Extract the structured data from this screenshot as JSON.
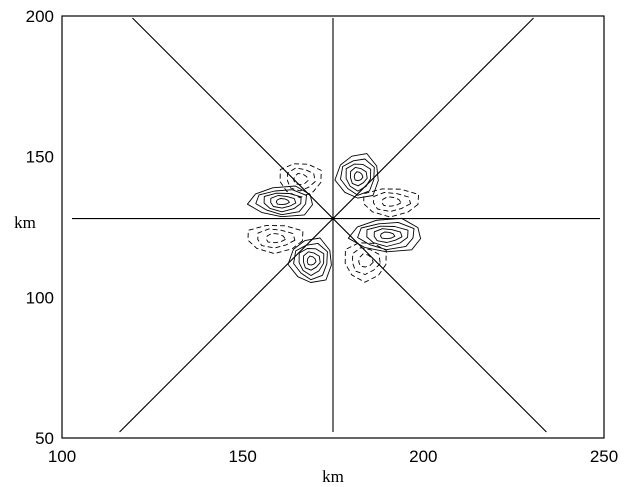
{
  "chart_data": {
    "type": "contour",
    "xlabel": "km",
    "ylabel": "km",
    "xlim": [
      100,
      250
    ],
    "ylim": [
      50,
      200
    ],
    "x_ticks": [
      100,
      150,
      200,
      250
    ],
    "y_ticks": [
      50,
      100,
      150,
      200
    ],
    "grid": false,
    "radial_lines": {
      "center": [
        175,
        128
      ],
      "angles_deg": [
        0,
        45,
        90,
        135,
        180,
        225,
        270,
        315
      ]
    },
    "lobes": [
      {
        "sign": "positive",
        "center": [
          161,
          134
        ],
        "rx": 9,
        "ry": 5.5,
        "levels": 5
      },
      {
        "sign": "positive",
        "center": [
          182,
          143
        ],
        "rx": 6,
        "ry": 8,
        "levels": 5
      },
      {
        "sign": "positive",
        "center": [
          190,
          122
        ],
        "rx": 10,
        "ry": 6,
        "levels": 5
      },
      {
        "sign": "positive",
        "center": [
          169,
          113
        ],
        "rx": 6,
        "ry": 8,
        "levels": 5
      },
      {
        "sign": "negative",
        "center": [
          166,
          142
        ],
        "rx": 6,
        "ry": 6,
        "levels": 3
      },
      {
        "sign": "negative",
        "center": [
          191,
          134
        ],
        "rx": 8,
        "ry": 5,
        "levels": 3
      },
      {
        "sign": "negative",
        "center": [
          159,
          121
        ],
        "rx": 8,
        "ry": 5,
        "levels": 3
      },
      {
        "sign": "negative",
        "center": [
          184,
          113
        ],
        "rx": 6,
        "ry": 7,
        "levels": 3
      }
    ]
  }
}
